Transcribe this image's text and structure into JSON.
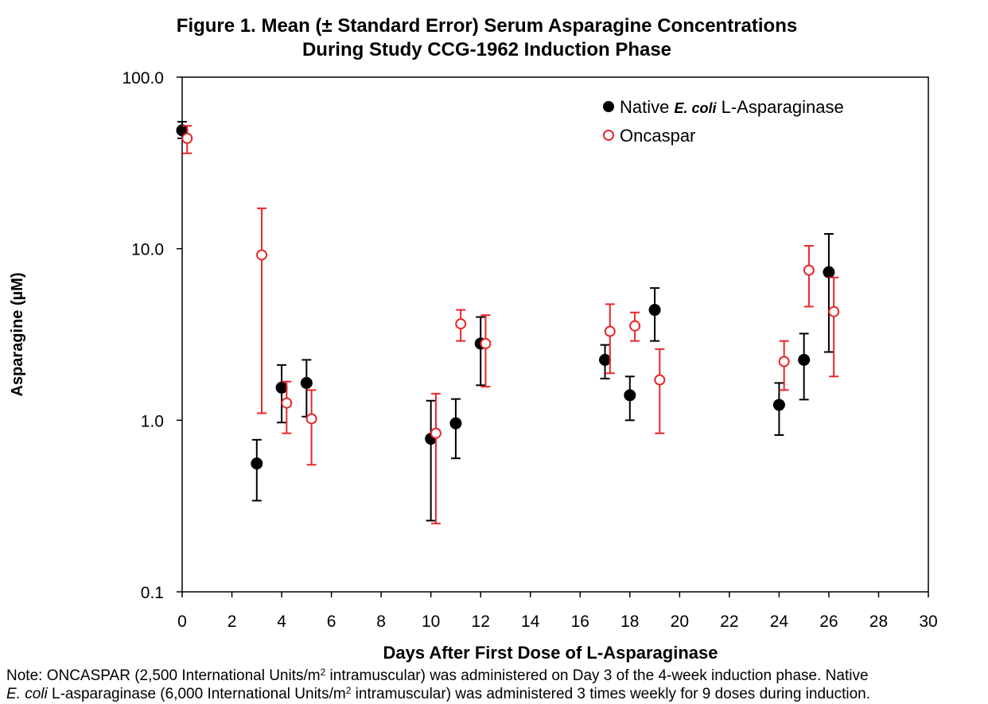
{
  "title": {
    "line1": "Figure 1. Mean (± Standard Error) Serum Asparagine Concentrations",
    "line2": "During Study CCG-1962 Induction Phase"
  },
  "note": {
    "p1": "Note: ONCASPAR (2,500 International Units/m",
    "sup1": "2",
    "p2": " intramuscular) was administered on Day 3 of the 4-week induction phase. Native",
    "p3": "E. coli",
    "p4": " L-asparaginase (6,000 International Units/m",
    "sup2": "2",
    "p5": " intramuscular) was administered 3 times weekly for 9 doses during induction."
  },
  "chart_data": {
    "type": "scatter",
    "title": "Figure 1. Mean (± Standard Error) Serum Asparagine Concentrations During Study CCG-1962 Induction Phase",
    "xlabel": "Days After First Dose of L-Asparaginase",
    "ylabel": "Asparagine (µM)",
    "xlim": [
      0,
      30
    ],
    "ylim": [
      0.1,
      100
    ],
    "yscale": "log",
    "x_ticks": [
      0,
      2,
      4,
      6,
      8,
      10,
      12,
      14,
      16,
      18,
      20,
      22,
      24,
      26,
      28,
      30
    ],
    "y_ticks": [
      {
        "value": 0.1,
        "label": "0.1"
      },
      {
        "value": 1,
        "label": "1.0"
      },
      {
        "value": 10,
        "label": "10.0"
      },
      {
        "value": 100,
        "label": "100.0"
      }
    ],
    "grid": false,
    "legend_position": "top-right",
    "series": [
      {
        "name_parts": [
          "Native ",
          "E. coli",
          " L-Asparaginase"
        ],
        "marker": "filled-circle",
        "color": "#000000",
        "points": [
          {
            "x": 0,
            "y": 49,
            "lo": 44,
            "hi": 55
          },
          {
            "x": 3,
            "y": 0.56,
            "lo": 0.34,
            "hi": 0.77
          },
          {
            "x": 4,
            "y": 1.55,
            "lo": 0.97,
            "hi": 2.1
          },
          {
            "x": 5,
            "y": 1.65,
            "lo": 1.05,
            "hi": 2.25
          },
          {
            "x": 10,
            "y": 0.78,
            "lo": 0.26,
            "hi": 1.3
          },
          {
            "x": 11,
            "y": 0.96,
            "lo": 0.6,
            "hi": 1.33
          },
          {
            "x": 12,
            "y": 2.8,
            "lo": 1.6,
            "hi": 4.0
          },
          {
            "x": 17,
            "y": 2.25,
            "lo": 1.75,
            "hi": 2.75
          },
          {
            "x": 18,
            "y": 1.4,
            "lo": 1.0,
            "hi": 1.8
          },
          {
            "x": 19,
            "y": 4.4,
            "lo": 2.9,
            "hi": 5.9
          },
          {
            "x": 24,
            "y": 1.23,
            "lo": 0.82,
            "hi": 1.65
          },
          {
            "x": 25,
            "y": 2.25,
            "lo": 1.32,
            "hi": 3.2
          },
          {
            "x": 26,
            "y": 7.3,
            "lo": 2.5,
            "hi": 12.2
          }
        ]
      },
      {
        "name": "Oncaspar",
        "marker": "open-circle",
        "color": "#e8262a",
        "points": [
          {
            "x": 0.2,
            "y": 44,
            "lo": 36,
            "hi": 52
          },
          {
            "x": 3.2,
            "y": 9.2,
            "lo": 1.1,
            "hi": 17.2
          },
          {
            "x": 4.2,
            "y": 1.26,
            "lo": 0.84,
            "hi": 1.68
          },
          {
            "x": 5.2,
            "y": 1.02,
            "lo": 0.55,
            "hi": 1.5
          },
          {
            "x": 10.2,
            "y": 0.84,
            "lo": 0.25,
            "hi": 1.43
          },
          {
            "x": 11.2,
            "y": 3.65,
            "lo": 2.9,
            "hi": 4.4
          },
          {
            "x": 12.2,
            "y": 2.8,
            "lo": 1.57,
            "hi": 4.1
          },
          {
            "x": 17.2,
            "y": 3.3,
            "lo": 1.88,
            "hi": 4.75
          },
          {
            "x": 18.2,
            "y": 3.55,
            "lo": 2.9,
            "hi": 4.25
          },
          {
            "x": 19.2,
            "y": 1.72,
            "lo": 0.84,
            "hi": 2.6
          },
          {
            "x": 24.2,
            "y": 2.2,
            "lo": 1.5,
            "hi": 2.9
          },
          {
            "x": 25.2,
            "y": 7.5,
            "lo": 4.6,
            "hi": 10.4
          },
          {
            "x": 26.2,
            "y": 4.3,
            "lo": 1.8,
            "hi": 6.8
          }
        ]
      }
    ]
  }
}
